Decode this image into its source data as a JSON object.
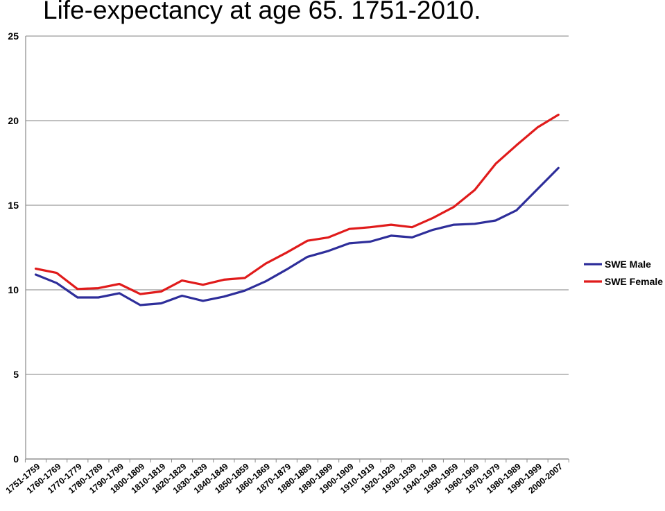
{
  "chart_data": {
    "type": "line",
    "title": "Life-expectancy at age 65. 1751-2010.",
    "xlabel": "",
    "ylabel": "",
    "ylim": [
      0,
      25
    ],
    "yticks": [
      0,
      5,
      10,
      15,
      20,
      25
    ],
    "grid": true,
    "legend": "right",
    "categories": [
      "1751-1759",
      "1760-1769",
      "1770-1779",
      "1780-1789",
      "1790-1799",
      "1800-1809",
      "1810-1819",
      "1820-1829",
      "1830-1839",
      "1840-1849",
      "1850-1859",
      "1860-1869",
      "1870-1879",
      "1880-1889",
      "1890-1899",
      "1900-1909",
      "1910-1919",
      "1920-1929",
      "1930-1939",
      "1940-1949",
      "1950-1959",
      "1960-1969",
      "1970-1979",
      "1980-1989",
      "1990-1999",
      "2000-2007"
    ],
    "series": [
      {
        "name": "SWE Male",
        "color": "#2e2e9a",
        "values": [
          10.9,
          10.4,
          9.55,
          9.55,
          9.8,
          9.1,
          9.2,
          9.65,
          9.35,
          9.6,
          9.95,
          10.5,
          11.2,
          11.95,
          12.3,
          12.75,
          12.85,
          13.2,
          13.1,
          13.55,
          13.85,
          13.9,
          14.1,
          14.7,
          15.95,
          17.2
        ]
      },
      {
        "name": "SWE Female",
        "color": "#e01b1b",
        "values": [
          11.25,
          11.0,
          10.05,
          10.1,
          10.35,
          9.75,
          9.9,
          10.55,
          10.3,
          10.6,
          10.7,
          11.55,
          12.2,
          12.9,
          13.1,
          13.6,
          13.7,
          13.85,
          13.7,
          14.25,
          14.9,
          15.9,
          17.45,
          18.55,
          19.6,
          20.35
        ]
      }
    ]
  }
}
